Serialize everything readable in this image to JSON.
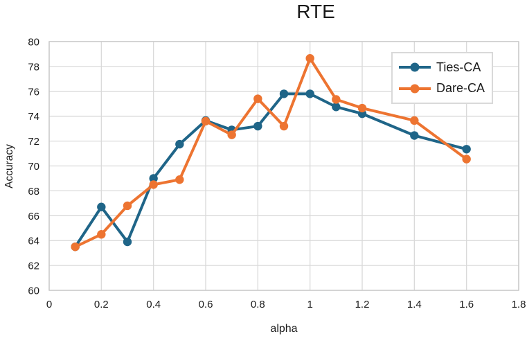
{
  "chart_data": {
    "type": "line",
    "title": "RTE",
    "xlabel": "alpha",
    "ylabel": "Accuracy",
    "x": [
      0.1,
      0.2,
      0.3,
      0.4,
      0.5,
      0.6,
      0.7,
      0.8,
      0.9,
      1.0,
      1.1,
      1.2,
      1.4,
      1.6
    ],
    "series": [
      {
        "name": "Ties-CA",
        "color": "#1F6588",
        "values": [
          63.5,
          66.7,
          63.9,
          69.0,
          71.75,
          73.65,
          72.9,
          73.2,
          75.8,
          75.8,
          74.75,
          74.2,
          72.45,
          71.35
        ]
      },
      {
        "name": "Dare-CA",
        "color": "#ED7431",
        "values": [
          63.5,
          64.5,
          66.8,
          68.5,
          68.9,
          73.6,
          72.5,
          75.4,
          73.2,
          78.65,
          75.35,
          74.65,
          73.65,
          70.55
        ]
      }
    ],
    "xlim": [
      0,
      1.8
    ],
    "ylim": [
      60,
      80
    ],
    "x_tick_values": [
      0,
      0.2,
      0.4,
      0.6,
      0.8,
      1.0,
      1.2,
      1.4,
      1.6,
      1.8
    ],
    "x_tick_labels": [
      "0",
      "0.2",
      "0.4",
      "0.6",
      "0.8",
      "1",
      "1.2",
      "1.4",
      "1.6",
      "1.8"
    ],
    "y_tick_values": [
      60,
      62,
      64,
      66,
      68,
      70,
      72,
      74,
      76,
      78,
      80
    ],
    "y_tick_labels": [
      "60",
      "62",
      "64",
      "66",
      "68",
      "70",
      "72",
      "74",
      "76",
      "78",
      "80"
    ],
    "grid": true,
    "legend_position": "top-right",
    "grid_color": "#D9D9D9",
    "axis_line_color": "#C6C6C6",
    "text_color": "#1A1A1A",
    "background": "#FFFFFF"
  }
}
